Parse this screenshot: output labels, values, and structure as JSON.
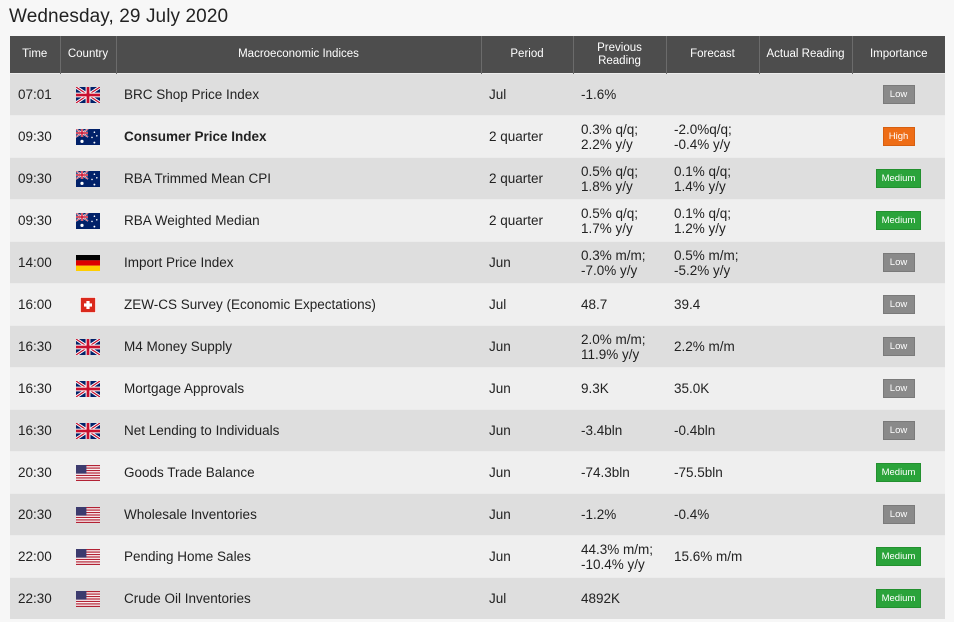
{
  "page": {
    "title": "Wednesday, 29 July 2020"
  },
  "columns": {
    "time": "Time",
    "country": "Country",
    "indices": "Macroeconomic Indices",
    "period": "Period",
    "previous": "Previous Reading",
    "forecast": "Forecast",
    "actual": "Actual Reading",
    "importance": "Importance"
  },
  "importance_colors": {
    "Low": "#8a8a8a",
    "Medium": "#2aa33a",
    "High": "#ee6d16"
  },
  "rows": [
    {
      "time": "07:01",
      "country_icon": "uk-flag-icon",
      "index": "BRC Shop Price Index",
      "bold": false,
      "period": "Jul",
      "previous": [
        "-1.6%"
      ],
      "forecast": [],
      "actual": "",
      "importance": "Low"
    },
    {
      "time": "09:30",
      "country_icon": "australia-flag-icon",
      "index": "Consumer Price Index",
      "bold": true,
      "period": "2 quarter",
      "previous": [
        "0.3% q/q;",
        "2.2% y/y"
      ],
      "forecast": [
        "-2.0%q/q;",
        "-0.4% y/y"
      ],
      "actual": "",
      "importance": "High"
    },
    {
      "time": "09:30",
      "country_icon": "australia-flag-icon",
      "index": "RBA Trimmed Mean CPI",
      "bold": false,
      "period": "2 quarter",
      "previous": [
        "0.5% q/q;",
        "1.8% y/y"
      ],
      "forecast": [
        "0.1% q/q;",
        "1.4% y/y"
      ],
      "actual": "",
      "importance": "Medium"
    },
    {
      "time": "09:30",
      "country_icon": "australia-flag-icon",
      "index": "RBA Weighted Median",
      "bold": false,
      "period": "2 quarter",
      "previous": [
        "0.5% q/q;",
        "1.7% y/y"
      ],
      "forecast": [
        "0.1% q/q;",
        "1.2% y/y"
      ],
      "actual": "",
      "importance": "Medium"
    },
    {
      "time": "14:00",
      "country_icon": "germany-flag-icon",
      "index": "Import Price Index",
      "bold": false,
      "period": "Jun",
      "previous": [
        "0.3% m/m;",
        "-7.0% y/y"
      ],
      "forecast": [
        "0.5% m/m;",
        "-5.2% y/y"
      ],
      "actual": "",
      "importance": "Low"
    },
    {
      "time": "16:00",
      "country_icon": "switzerland-flag-icon",
      "index": "ZEW-CS Survey (Economic Expectations)",
      "bold": false,
      "period": "Jul",
      "previous": [
        "48.7"
      ],
      "forecast": [
        "39.4"
      ],
      "actual": "",
      "importance": "Low"
    },
    {
      "time": "16:30",
      "country_icon": "uk-flag-icon",
      "index": "M4 Money Supply",
      "bold": false,
      "period": "Jun",
      "previous": [
        "2.0% m/m;",
        "11.9% y/y"
      ],
      "forecast": [
        "2.2% m/m"
      ],
      "actual": "",
      "importance": "Low"
    },
    {
      "time": "16:30",
      "country_icon": "uk-flag-icon",
      "index": "Mortgage Approvals",
      "bold": false,
      "period": "Jun",
      "previous": [
        "9.3K"
      ],
      "forecast": [
        "35.0K"
      ],
      "actual": "",
      "importance": "Low"
    },
    {
      "time": "16:30",
      "country_icon": "uk-flag-icon",
      "index": "Net Lending to Individuals",
      "bold": false,
      "period": "Jun",
      "previous": [
        "-3.4bln"
      ],
      "forecast": [
        "-0.4bln"
      ],
      "actual": "",
      "importance": "Low"
    },
    {
      "time": "20:30",
      "country_icon": "usa-flag-icon",
      "index": "Goods Trade Balance",
      "bold": false,
      "period": "Jun",
      "previous": [
        "-74.3bln"
      ],
      "forecast": [
        "-75.5bln"
      ],
      "actual": "",
      "importance": "Medium"
    },
    {
      "time": "20:30",
      "country_icon": "usa-flag-icon",
      "index": "Wholesale Inventories",
      "bold": false,
      "period": "Jun",
      "previous": [
        "-1.2%"
      ],
      "forecast": [
        "-0.4%"
      ],
      "actual": "",
      "importance": "Low"
    },
    {
      "time": "22:00",
      "country_icon": "usa-flag-icon",
      "index": "Pending Home Sales",
      "bold": false,
      "period": "Jun",
      "previous": [
        "44.3% m/m;",
        "-10.4% y/y"
      ],
      "forecast": [
        "15.6% m/m"
      ],
      "actual": "",
      "importance": "Medium"
    },
    {
      "time": "22:30",
      "country_icon": "usa-flag-icon",
      "index": "Crude Oil Inventories",
      "bold": false,
      "period": "Jul",
      "previous": [
        "4892K"
      ],
      "forecast": [],
      "actual": "",
      "importance": "Medium"
    }
  ]
}
